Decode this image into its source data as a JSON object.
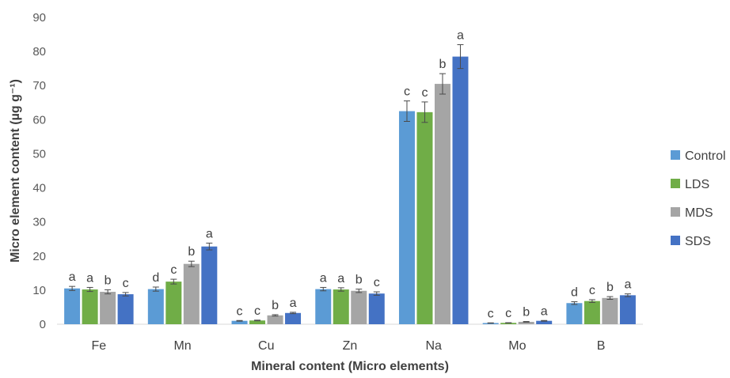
{
  "chart_data": {
    "type": "bar",
    "xlabel": "Mineral content (Micro elements)",
    "ylabel": "Micro element content (µg g⁻¹)",
    "ylim": [
      0,
      90
    ],
    "yticks": [
      0,
      10,
      20,
      30,
      40,
      50,
      60,
      70,
      80,
      90
    ],
    "grid": false,
    "legend": "right",
    "categories": [
      "Fe",
      "Mn",
      "Cu",
      "Zn",
      "Na",
      "Mo",
      "B"
    ],
    "series": [
      {
        "name": "Control",
        "color": "#5B9BD5",
        "values": [
          10.5,
          10.3,
          1.0,
          10.3,
          62.5,
          0.35,
          6.2
        ],
        "errors": [
          0.6,
          0.6,
          0.1,
          0.5,
          3.0,
          0.05,
          0.4
        ],
        "letters": [
          "a",
          "d",
          "c",
          "a",
          "c",
          "c",
          "d"
        ]
      },
      {
        "name": "LDS",
        "color": "#70AD47",
        "values": [
          10.2,
          12.5,
          1.1,
          10.2,
          62.2,
          0.4,
          6.8
        ],
        "errors": [
          0.6,
          0.7,
          0.1,
          0.5,
          3.0,
          0.05,
          0.4
        ],
        "letters": [
          "a",
          "c",
          "c",
          "a",
          "c",
          "c",
          "c"
        ]
      },
      {
        "name": "MDS",
        "color": "#A5A5A5",
        "values": [
          9.5,
          17.7,
          2.6,
          9.8,
          70.5,
          0.7,
          7.7
        ],
        "errors": [
          0.6,
          0.8,
          0.2,
          0.5,
          3.0,
          0.1,
          0.4
        ],
        "letters": [
          "b",
          "b",
          "b",
          "b",
          "b",
          "b",
          "b"
        ]
      },
      {
        "name": "SDS",
        "color": "#4472C4",
        "values": [
          8.8,
          22.8,
          3.3,
          9.0,
          78.5,
          1.0,
          8.5
        ],
        "errors": [
          0.5,
          1.0,
          0.2,
          0.5,
          3.5,
          0.1,
          0.4
        ],
        "letters": [
          "c",
          "a",
          "a",
          "c",
          "a",
          "a",
          "a"
        ]
      }
    ]
  }
}
